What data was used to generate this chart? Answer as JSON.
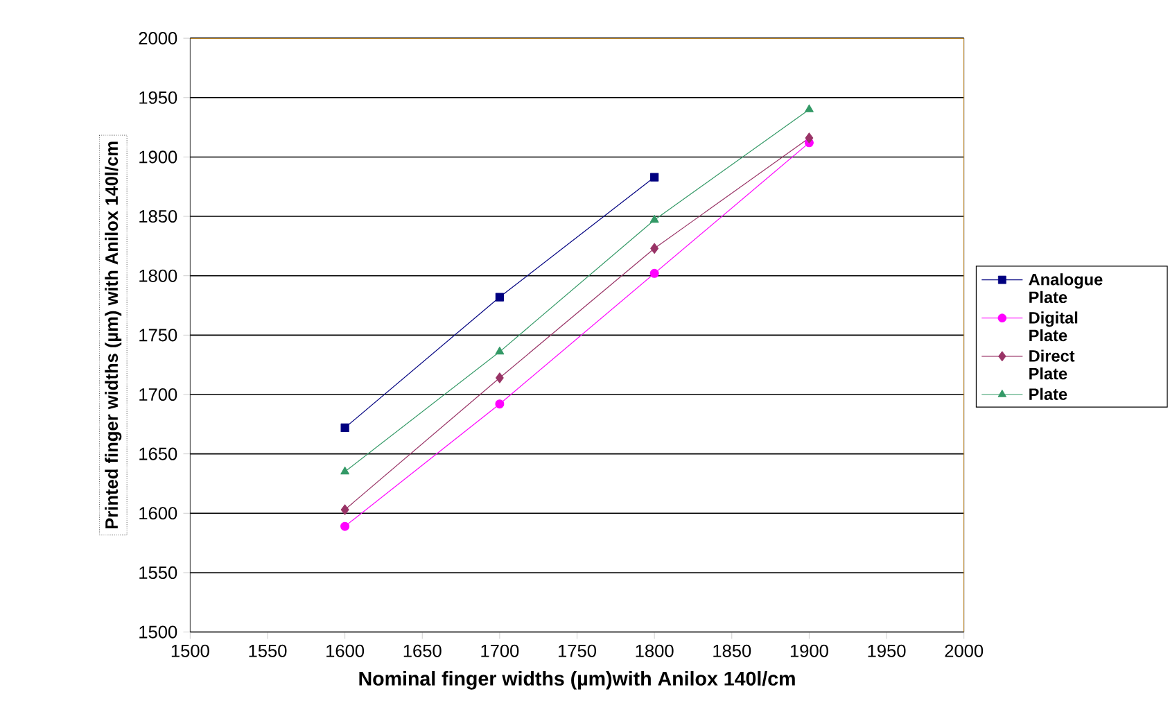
{
  "chart_data": {
    "type": "line",
    "xlabel": "Nominal finger widths (µm)with Anilox 140l/cm",
    "ylabel": "Printed finger widths (µm) with Anilox 140l/cm",
    "xlim": [
      1500,
      2000
    ],
    "xticks": [
      1500,
      1550,
      1600,
      1650,
      1700,
      1750,
      1800,
      1850,
      1900,
      1950,
      2000
    ],
    "ylim": [
      1500,
      2000
    ],
    "yticks": [
      1500,
      1550,
      1600,
      1650,
      1700,
      1750,
      1800,
      1850,
      1900,
      1950,
      2000
    ],
    "grid": "y",
    "legend": "right",
    "series": [
      {
        "name": "Analogue Plate",
        "color": "#000080",
        "marker": "square",
        "x": [
          1600,
          1700,
          1800
        ],
        "values": [
          1672,
          1782,
          1883
        ]
      },
      {
        "name": "Digital Plate",
        "color": "#ff00ff",
        "marker": "circle",
        "x": [
          1600,
          1700,
          1800,
          1900
        ],
        "values": [
          1589,
          1692,
          1802,
          1912
        ]
      },
      {
        "name": "Direct Plate",
        "color": "#993366",
        "marker": "diamond",
        "x": [
          1600,
          1700,
          1800,
          1900
        ],
        "values": [
          1603,
          1714,
          1823,
          1916
        ]
      },
      {
        "name": "Plate",
        "color": "#339966",
        "marker": "triangle",
        "x": [
          1600,
          1700,
          1800,
          1900
        ],
        "values": [
          1635,
          1736,
          1847,
          1940
        ]
      }
    ]
  }
}
